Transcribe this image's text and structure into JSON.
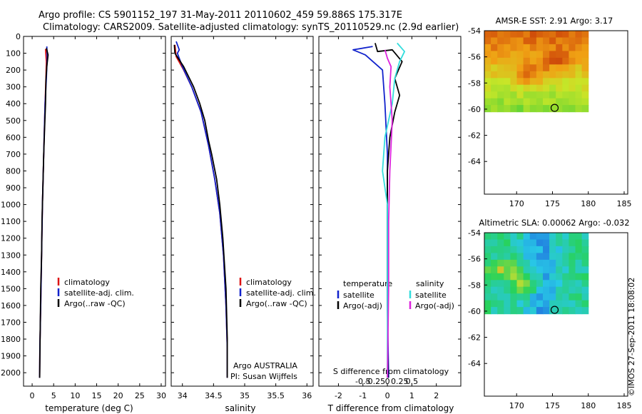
{
  "header": {
    "line1": "Argo profile: CS 5901152_197 31-May-2011 20110602_459 59.886S 175.317E",
    "line2": "Climatology: CARS2009. Satellite-adjusted climatology: synTS_20110529.nc (2.9d earlier)"
  },
  "credit": "©IMOS 27-Sep-2011 18:08:02",
  "colors": {
    "climatology": "#dd1111",
    "satellite": "#1122cc",
    "argo": "#000000",
    "sal_satellite": "#33dddd",
    "sal_argo": "#dd22dd"
  },
  "chart_data": [
    {
      "type": "line",
      "xlabel": "temperature (deg C)",
      "ylabel": "",
      "y_ticks": [
        "0",
        "100",
        "200",
        "300",
        "400",
        "500",
        "600",
        "700",
        "800",
        "900",
        "1000",
        "1100",
        "1200",
        "1300",
        "1400",
        "1500",
        "1600",
        "1700",
        "1800",
        "1900",
        "2000"
      ],
      "x_ticks": [
        "0",
        "5",
        "10",
        "15",
        "20",
        "25",
        "30"
      ],
      "xlim": [
        -2,
        31
      ],
      "ylim": [
        2080,
        0
      ],
      "legend": [
        "climatology",
        "satellite-adj. clim.",
        "Argo(..raw -QC)"
      ],
      "legend_position": "bottom-right",
      "series": [
        {
          "name": "climatology",
          "color": "#dd1111",
          "points": [
            [
              3.1,
              75
            ],
            [
              3.3,
              150
            ],
            [
              3.2,
              250
            ],
            [
              3.0,
              400
            ],
            [
              2.8,
              600
            ],
            [
              2.6,
              800
            ],
            [
              2.4,
              1000
            ],
            [
              2.2,
              1300
            ],
            [
              2.0,
              1600
            ],
            [
              1.8,
              1850
            ],
            [
              1.75,
              2030
            ]
          ]
        },
        {
          "name": "satellite-adj. clim.",
          "color": "#1122cc",
          "points": [
            [
              3.4,
              60
            ],
            [
              3.5,
              120
            ],
            [
              3.3,
              250
            ],
            [
              3.0,
              400
            ],
            [
              2.8,
              600
            ],
            [
              2.6,
              800
            ],
            [
              2.4,
              1000
            ],
            [
              2.2,
              1300
            ],
            [
              2.0,
              1600
            ],
            [
              1.8,
              1850
            ],
            [
              1.75,
              2030
            ]
          ]
        },
        {
          "name": "Argo(..raw -QC)",
          "color": "#000000",
          "points": [
            [
              3.3,
              70
            ],
            [
              3.7,
              110
            ],
            [
              3.4,
              180
            ],
            [
              3.2,
              260
            ],
            [
              3.1,
              400
            ],
            [
              2.9,
              550
            ],
            [
              2.7,
              700
            ],
            [
              2.5,
              900
            ],
            [
              2.3,
              1100
            ],
            [
              2.2,
              1300
            ],
            [
              2.0,
              1500
            ],
            [
              1.9,
              1700
            ],
            [
              1.8,
              1900
            ],
            [
              1.75,
              2030
            ]
          ]
        }
      ]
    },
    {
      "type": "line",
      "xlabel": "salinity",
      "x_ticks": [
        "34",
        "34.5",
        "35",
        "35.5",
        "36"
      ],
      "xlim": [
        33.82,
        36.1
      ],
      "ylim": [
        2080,
        0
      ],
      "legend": [
        "climatology",
        "satellite-adj. clim.",
        "Argo(..raw -QC)"
      ],
      "legend_position": "bottom-right",
      "annotations": [
        "Argo AUSTRALIA",
        "PI: Susan Wijffels"
      ],
      "series": [
        {
          "name": "climatology",
          "color": "#dd1111",
          "points": [
            [
              33.88,
              50
            ],
            [
              33.9,
              120
            ],
            [
              34.02,
              200
            ],
            [
              34.15,
              300
            ],
            [
              34.3,
              450
            ],
            [
              34.42,
              650
            ],
            [
              34.52,
              850
            ],
            [
              34.6,
              1050
            ],
            [
              34.66,
              1300
            ],
            [
              34.7,
              1600
            ],
            [
              34.72,
              1850
            ],
            [
              34.72,
              2030
            ]
          ]
        },
        {
          "name": "satellite-adj. clim.",
          "color": "#1122cc",
          "points": [
            [
              33.9,
              30
            ],
            [
              33.95,
              80
            ],
            [
              33.92,
              100
            ],
            [
              34.0,
              180
            ],
            [
              34.15,
              300
            ],
            [
              34.3,
              450
            ],
            [
              34.42,
              650
            ],
            [
              34.52,
              850
            ],
            [
              34.6,
              1050
            ],
            [
              34.66,
              1300
            ],
            [
              34.7,
              1600
            ],
            [
              34.72,
              1850
            ],
            [
              34.72,
              2030
            ]
          ]
        },
        {
          "name": "Argo(..raw -QC)",
          "color": "#000000",
          "points": [
            [
              33.87,
              50
            ],
            [
              33.88,
              100
            ],
            [
              34.02,
              180
            ],
            [
              34.18,
              300
            ],
            [
              34.28,
              400
            ],
            [
              34.36,
              500
            ],
            [
              34.42,
              620
            ],
            [
              34.47,
              700
            ],
            [
              34.55,
              850
            ],
            [
              34.6,
              1000
            ],
            [
              34.65,
              1200
            ],
            [
              34.7,
              1500
            ],
            [
              34.72,
              1800
            ],
            [
              34.72,
              2030
            ]
          ]
        }
      ]
    },
    {
      "type": "line",
      "xlabel": "T difference from climatology",
      "top_xlabel": "S difference from climatology",
      "x_ticks": [
        "-2",
        "-1",
        "0",
        "1",
        "2"
      ],
      "top_x_ticks": [
        "-0.5",
        "-0.25",
        "0",
        "0.25",
        "0.5"
      ],
      "xlim": [
        -2.8,
        3.0
      ],
      "ylim": [
        2080,
        0
      ],
      "legend_titles": [
        "temperature",
        "salinity"
      ],
      "legend": [
        "satellite",
        "Argo(-adj)",
        "satellite",
        "Argo(-adj)"
      ],
      "series": [
        {
          "name": "satellite",
          "color": "#1122cc",
          "points": [
            [
              -0.6,
              60
            ],
            [
              -1.4,
              80
            ],
            [
              -0.9,
              110
            ],
            [
              -0.2,
              200
            ],
            [
              -0.1,
              400
            ],
            [
              0.0,
              700
            ],
            [
              0.0,
              1100
            ],
            [
              0.0,
              1600
            ],
            [
              0.05,
              2030
            ]
          ]
        },
        {
          "name": "Argo(-adj)",
          "color": "#000000",
          "points": [
            [
              -0.5,
              40
            ],
            [
              -0.4,
              90
            ],
            [
              0.2,
              80
            ],
            [
              0.6,
              150
            ],
            [
              0.3,
              250
            ],
            [
              0.5,
              350
            ],
            [
              0.3,
              450
            ],
            [
              0.1,
              600
            ],
            [
              0.0,
              800
            ],
            [
              0.0,
              1100
            ],
            [
              0.0,
              1500
            ],
            [
              0.02,
              2030
            ]
          ]
        },
        {
          "name": "satellite",
          "color": "#33dddd",
          "points": [
            [
              0.4,
              40
            ],
            [
              0.7,
              90
            ],
            [
              0.5,
              150
            ],
            [
              0.3,
              250
            ],
            [
              0.2,
              400
            ],
            [
              -0.1,
              600
            ],
            [
              -0.2,
              800
            ],
            [
              0.0,
              1000
            ],
            [
              0.0,
              1400
            ],
            [
              0.0,
              2030
            ]
          ]
        },
        {
          "name": "Argo(-adj)",
          "color": "#dd22dd",
          "points": [
            [
              -0.1,
              80
            ],
            [
              0.0,
              130
            ],
            [
              0.15,
              180
            ],
            [
              0.1,
              300
            ],
            [
              0.2,
              500
            ],
            [
              0.1,
              800
            ],
            [
              0.05,
              1100
            ],
            [
              0.05,
              1500
            ],
            [
              0.0,
              2030
            ]
          ]
        }
      ]
    },
    {
      "type": "heatmap",
      "title": "AMSR-E SST: 2.91 Argo: 3.17",
      "x_ticks": [
        "170",
        "175",
        "180",
        "185"
      ],
      "y_ticks": [
        "-54",
        "-56",
        "-58",
        "-60",
        "-62",
        "-64"
      ],
      "xlim": [
        165.5,
        185.5
      ],
      "ylim": [
        -66.5,
        -54
      ],
      "data_extent": {
        "lon": [
          165.5,
          180
        ],
        "lat": [
          -60.2,
          -54
        ]
      },
      "marker": {
        "lon": 175.3,
        "lat": -59.9
      }
    },
    {
      "type": "heatmap",
      "title": "Altimetric SLA: 0.00062 Argo: -0.032",
      "x_ticks": [
        "170",
        "175",
        "180",
        "185"
      ],
      "y_ticks": [
        "-54",
        "-56",
        "-58",
        "-60",
        "-62",
        "-64"
      ],
      "xlim": [
        165.5,
        185.5
      ],
      "ylim": [
        -66.5,
        -54
      ],
      "data_extent": {
        "lon": [
          165.5,
          180
        ],
        "lat": [
          -60.2,
          -54
        ]
      },
      "marker": {
        "lon": 175.3,
        "lat": -59.9
      }
    }
  ]
}
